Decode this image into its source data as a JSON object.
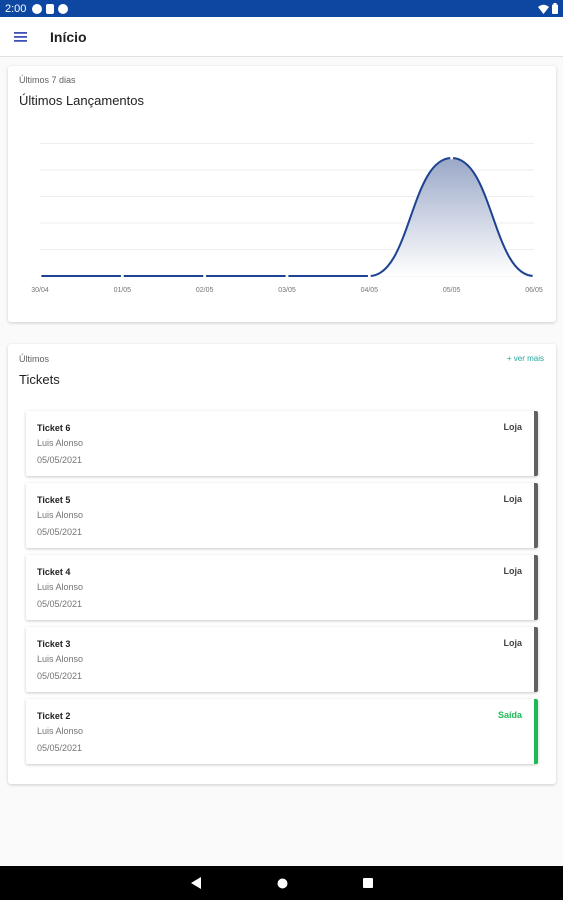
{
  "status_bar": {
    "time": "2:00"
  },
  "app_bar": {
    "title": "Início"
  },
  "chart_card": {
    "overline": "Últimos 7 dias",
    "title": "Últimos Lançamentos"
  },
  "chart_data": {
    "type": "area",
    "categories": [
      "30/04",
      "01/05",
      "02/05",
      "03/05",
      "04/05",
      "05/05",
      "06/05"
    ],
    "values": [
      0,
      0,
      0,
      0,
      0,
      1,
      0
    ],
    "grid": true,
    "title": "",
    "xlabel": "",
    "ylabel": "",
    "ylim": [
      0,
      1
    ],
    "colors": {
      "line": "#1e4391",
      "fill_top": "#9aa8c7",
      "fill_bottom": "#ffffff"
    }
  },
  "tickets_card": {
    "overline": "Últimos",
    "title": "Tickets",
    "see_more": "+ ver mais",
    "items": [
      {
        "name": "Ticket 6",
        "person": "Luis Alonso",
        "date": "05/05/2021",
        "type": "Loja",
        "accent": "#616161"
      },
      {
        "name": "Ticket 5",
        "person": "Luis Alonso",
        "date": "05/05/2021",
        "type": "Loja",
        "accent": "#616161"
      },
      {
        "name": "Ticket 4",
        "person": "Luis Alonso",
        "date": "05/05/2021",
        "type": "Loja",
        "accent": "#616161"
      },
      {
        "name": "Ticket 3",
        "person": "Luis Alonso",
        "date": "05/05/2021",
        "type": "Loja",
        "accent": "#616161"
      },
      {
        "name": "Ticket 2",
        "person": "Luis Alonso",
        "date": "05/05/2021",
        "type": "Saída",
        "accent": "#1db954"
      }
    ]
  },
  "icons": {
    "menu": "hamburger-menu-icon",
    "wifi": "wifi-icon",
    "battery": "battery-icon",
    "back": "back-triangle-icon",
    "home": "home-circle-icon",
    "recents": "recents-square-icon"
  }
}
